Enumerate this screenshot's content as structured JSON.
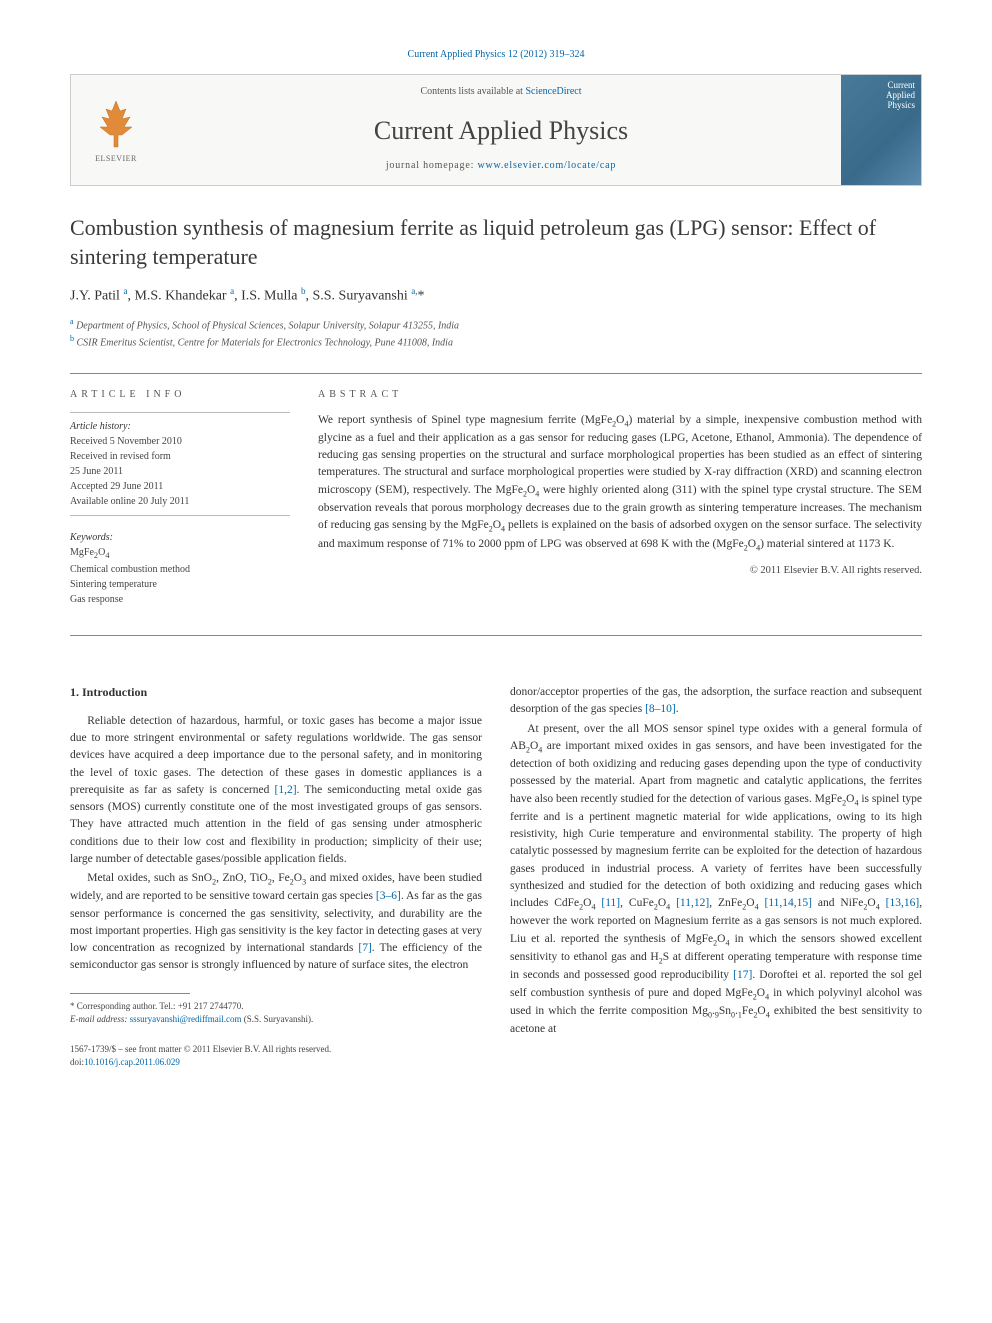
{
  "citation": "Current Applied Physics 12 (2012) 319–324",
  "masthead": {
    "contents_prefix": "Contents lists available at ",
    "contents_link": "ScienceDirect",
    "journal_name": "Current Applied Physics",
    "homepage_prefix": "journal homepage: ",
    "homepage_url": "www.elsevier.com/locate/cap",
    "publisher_label": "ELSEVIER",
    "cover_line1": "Current",
    "cover_line2": "Applied",
    "cover_line3": "Physics"
  },
  "title": "Combustion synthesis of magnesium ferrite as liquid petroleum gas (LPG) sensor: Effect of sintering temperature",
  "authors_html": "J.Y. Patil <sup>a</sup>, M.S. Khandekar <sup>a</sup>, I.S. Mulla <sup>b</sup>, S.S. Suryavanshi <sup>a,</sup>*",
  "affiliations": {
    "a": "Department of Physics, School of Physical Sciences, Solapur University, Solapur 413255, India",
    "b": "CSIR Emeritus Scientist, Centre for Materials for Electronics Technology, Pune 411008, India"
  },
  "info": {
    "heading": "ARTICLE INFO",
    "history_label": "Article history:",
    "history_lines": [
      "Received 5 November 2010",
      "Received in revised form",
      "25 June 2011",
      "Accepted 29 June 2011",
      "Available online 20 July 2011"
    ],
    "keywords_label": "Keywords:",
    "keywords": [
      "MgFe₂O₄",
      "Chemical combustion method",
      "Sintering temperature",
      "Gas response"
    ]
  },
  "abstract": {
    "heading": "ABSTRACT",
    "text": "We report synthesis of Spinel type magnesium ferrite (MgFe₂O₄) material by a simple, inexpensive combustion method with glycine as a fuel and their application as a gas sensor for reducing gases (LPG, Acetone, Ethanol, Ammonia). The dependence of reducing gas sensing properties on the structural and surface morphological properties has been studied as an effect of sintering temperatures. The structural and surface morphological properties were studied by X-ray diffraction (XRD) and scanning electron microscopy (SEM), respectively. The MgFe₂O₄ were highly oriented along (311) with the spinel type crystal structure. The SEM observation reveals that porous morphology decreases due to the grain growth as sintering temperature increases. The mechanism of reducing gas sensing by the MgFe₂O₄ pellets is explained on the basis of adsorbed oxygen on the sensor surface. The selectivity and maximum response of 71% to 2000 ppm of LPG was observed at 698 K with the (MgFe₂O₄) material sintered at 1173 K.",
    "copyright": "© 2011 Elsevier B.V. All rights reserved."
  },
  "body": {
    "section_heading": "1. Introduction",
    "left_paras": [
      "Reliable detection of hazardous, harmful, or toxic gases has become a major issue due to more stringent environmental or safety regulations worldwide. The gas sensor devices have acquired a deep importance due to the personal safety, and in monitoring the level of toxic gases. The detection of these gases in domestic appliances is a prerequisite as far as safety is concerned [1,2]. The semiconducting metal oxide gas sensors (MOS) currently constitute one of the most investigated groups of gas sensors. They have attracted much attention in the field of gas sensing under atmospheric conditions due to their low cost and flexibility in production; simplicity of their use; large number of detectable gases/possible application fields.",
      "Metal oxides, such as SnO₂, ZnO, TiO₂, Fe₂O₃ and mixed oxides, have been studied widely, and are reported to be sensitive toward certain gas species [3–6]. As far as the gas sensor performance is concerned the gas sensitivity, selectivity, and durability are the most important properties. High gas sensitivity is the key factor in detecting gases at very low concentration as recognized by international standards [7]. The efficiency of the semiconductor gas sensor is strongly influenced by nature of surface sites, the electron"
    ],
    "right_paras": [
      "donor/acceptor properties of the gas, the adsorption, the surface reaction and subsequent desorption of the gas species [8–10].",
      "At present, over the all MOS sensor spinel type oxides with a general formula of AB₂O₄ are important mixed oxides in gas sensors, and have been investigated for the detection of both oxidizing and reducing gases depending upon the type of conductivity possessed by the material. Apart from magnetic and catalytic applications, the ferrites have also been recently studied for the detection of various gases. MgFe₂O₄ is spinel type ferrite and is a pertinent magnetic material for wide applications, owing to its high resistivity, high Curie temperature and environmental stability. The property of high catalytic possessed by magnesium ferrite can be exploited for the detection of hazardous gases produced in industrial process. A variety of ferrites have been successfully synthesized and studied for the detection of both oxidizing and reducing gases which includes CdFe₂O₄ [11], CuFe₂O₄ [11,12], ZnFe₂O₄ [11,14,15] and NiFe₂O₄ [13,16], however the work reported on Magnesium ferrite as a gas sensors is not much explored. Liu et al. reported the synthesis of MgFe₂O₄ in which the sensors showed excellent sensitivity to ethanol gas and H₂S at different operating temperature with response time in seconds and possessed good reproducibility [17]. Doroftei et al. reported the sol gel self combustion synthesis of pure and doped MgFe₂O₄ in which polyvinyl alcohol was used in which the ferrite composition Mg₀.₉Sn₀.₁Fe₂O₄ exhibited the best sensitivity to acetone at"
    ]
  },
  "footnote": {
    "corresponding": "* Corresponding author. Tel.: +91 217 2744770.",
    "email_label": "E-mail address: ",
    "email": "sssuryavanshi@rediffmail.com",
    "email_suffix": " (S.S. Suryavanshi)."
  },
  "doi": {
    "line1": "1567-1739/$ – see front matter © 2011 Elsevier B.V. All rights reserved.",
    "line2_prefix": "doi:",
    "line2_link": "10.1016/j.cap.2011.06.029"
  },
  "citations_inline": {
    "c1": "[1,2]",
    "c2": "[3–6]",
    "c3": "[7]",
    "c4": "[8–10]",
    "c5": "[11]",
    "c6": "[11,12]",
    "c7": "[11,14,15]",
    "c8": "[13,16]",
    "c9": "[17]"
  }
}
